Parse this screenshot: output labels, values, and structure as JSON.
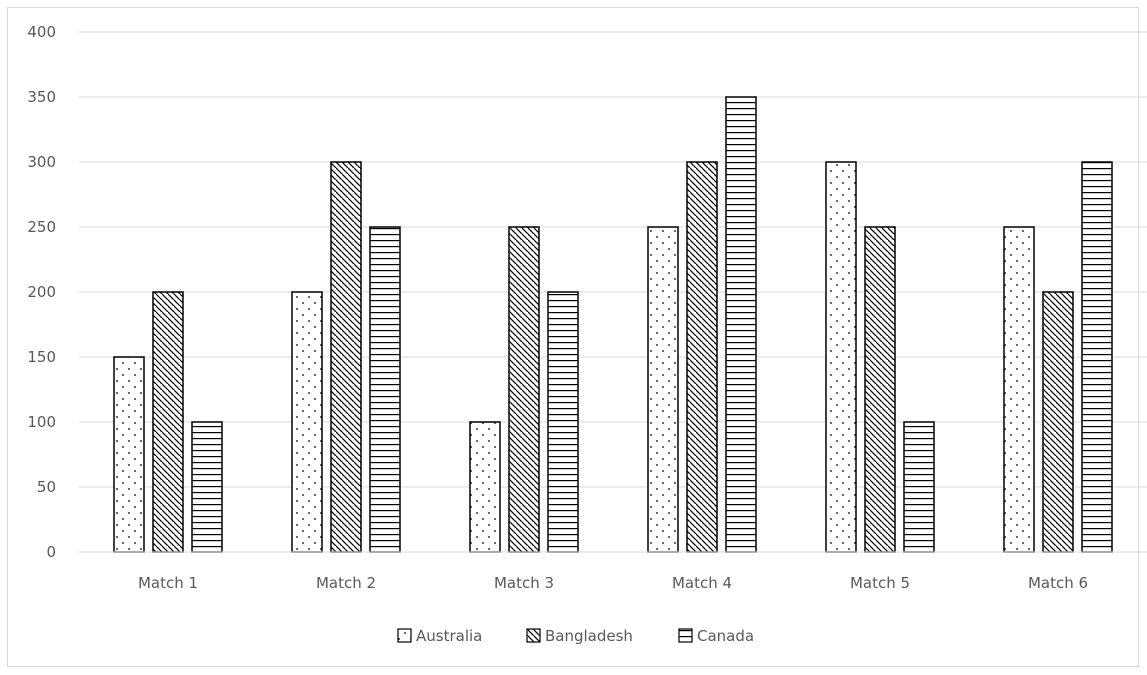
{
  "chart_data": {
    "type": "bar",
    "categories": [
      "Match 1",
      "Match 2",
      "Match 3",
      "Match 4",
      "Match 5",
      "Match 6"
    ],
    "series": [
      {
        "name": "Australia",
        "values": [
          150,
          200,
          100,
          250,
          300,
          250
        ],
        "pattern": "dots"
      },
      {
        "name": "Bangladesh",
        "values": [
          200,
          300,
          250,
          300,
          250,
          200
        ],
        "pattern": "diagonal"
      },
      {
        "name": "Canada",
        "values": [
          100,
          250,
          200,
          350,
          100,
          300
        ],
        "pattern": "horizontal"
      }
    ],
    "ylim": [
      0,
      400
    ],
    "yticks": [
      0,
      50,
      100,
      150,
      200,
      250,
      300,
      350,
      400
    ],
    "grid": true,
    "legend_position": "bottom",
    "colors": {
      "bar_fill": "#ffffff",
      "bar_stroke": "#000000",
      "grid": "#d9d9d9",
      "text": "#595959"
    }
  }
}
